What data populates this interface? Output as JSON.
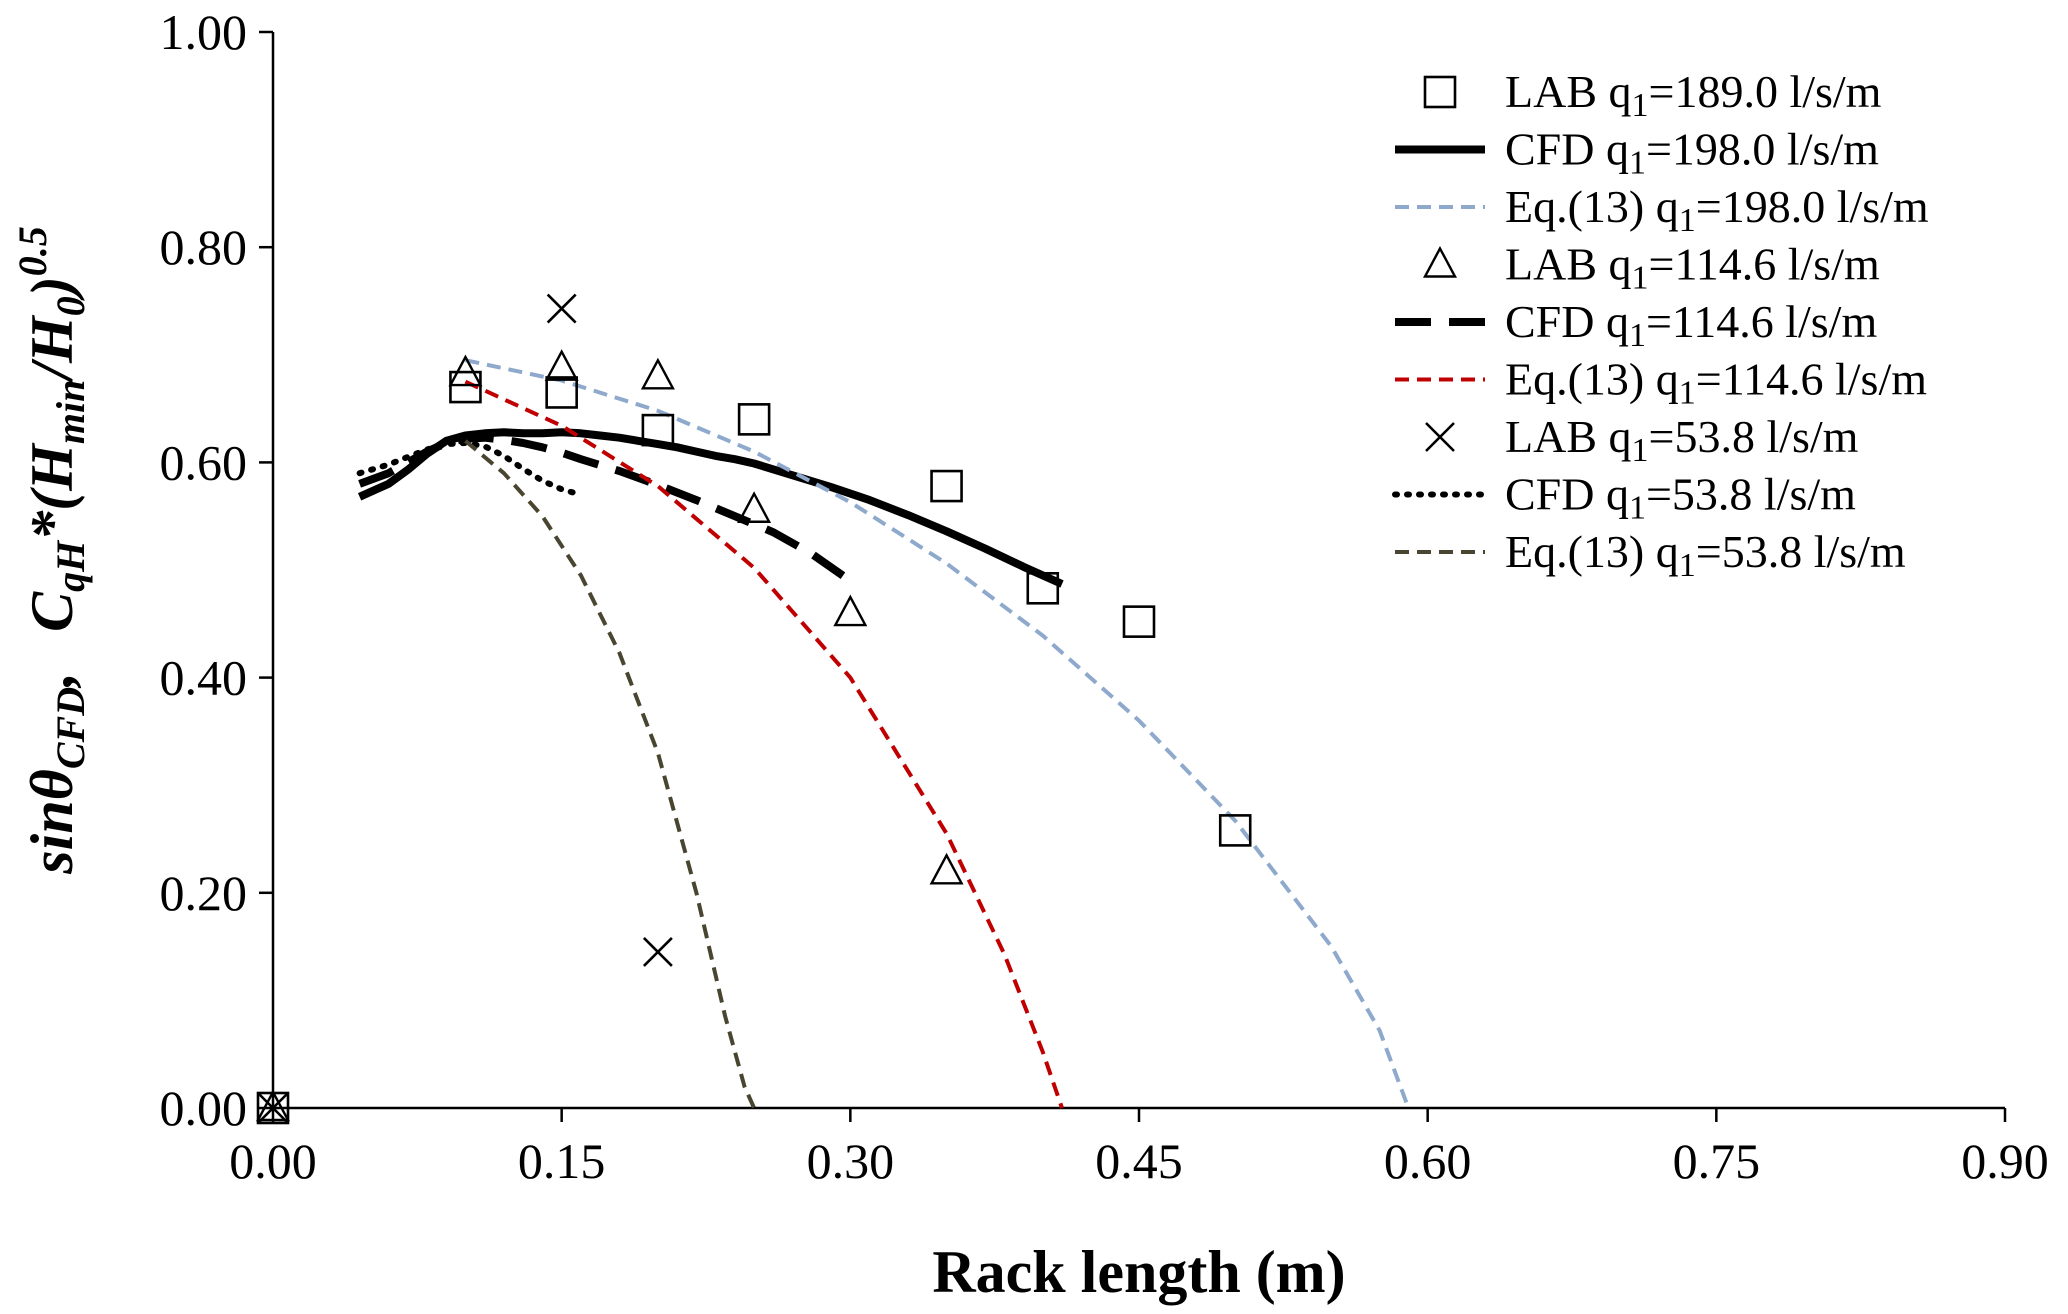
{
  "chart_data": {
    "type": "scatter",
    "title": "",
    "xlabel": "Rack length (m)",
    "ylabel_parts": {
      "sin": "sin",
      "theta": "θ",
      "cfd_sub": "CFD",
      "comma": ",",
      "c": "C",
      "qh_sub": "qH",
      "star": "*(",
      "h": "H",
      "min_sub": "min",
      "slash": "/",
      "h0": "H",
      "zero_sub": "0",
      "close": ")",
      "exp": "0.5"
    },
    "xlim": [
      0,
      0.9
    ],
    "ylim": [
      0,
      1.0
    ],
    "xticks": [
      "0.00",
      "0.15",
      "0.30",
      "0.45",
      "0.60",
      "0.75",
      "0.90"
    ],
    "yticks": [
      "0.00",
      "0.20",
      "0.40",
      "0.60",
      "0.80",
      "1.00"
    ],
    "legend_position": "top-right",
    "series": [
      {
        "name": "LAB q1=189.0 l/s/m",
        "legend": {
          "prefix": "LAB q",
          "sub": "1",
          "suffix": "=189.0 l/s/m"
        },
        "kind": "marker",
        "marker": "square",
        "color": "#000000",
        "x": [
          0.0,
          0.1,
          0.15,
          0.2,
          0.25,
          0.35,
          0.4,
          0.45,
          0.5
        ],
        "y": [
          0.0,
          0.67,
          0.665,
          0.63,
          0.64,
          0.578,
          0.483,
          0.452,
          0.258
        ]
      },
      {
        "name": "CFD q1=198.0 l/s/m",
        "legend": {
          "prefix": "CFD q",
          "sub": "1",
          "suffix": "=198.0 l/s/m"
        },
        "kind": "line",
        "style": "solid-thick",
        "color": "#000000",
        "x": [
          0.045,
          0.06,
          0.07,
          0.08,
          0.09,
          0.1,
          0.11,
          0.12,
          0.13,
          0.14,
          0.15,
          0.16,
          0.17,
          0.18,
          0.19,
          0.2,
          0.21,
          0.22,
          0.23,
          0.24,
          0.25,
          0.27,
          0.29,
          0.31,
          0.33,
          0.35,
          0.37,
          0.39,
          0.41
        ],
        "y": [
          0.568,
          0.58,
          0.593,
          0.608,
          0.62,
          0.625,
          0.627,
          0.628,
          0.627,
          0.627,
          0.628,
          0.627,
          0.625,
          0.623,
          0.62,
          0.617,
          0.614,
          0.61,
          0.606,
          0.603,
          0.599,
          0.588,
          0.577,
          0.565,
          0.551,
          0.536,
          0.52,
          0.503,
          0.487
        ]
      },
      {
        "name": "Eq.(13) q1=198.0 l/s/m",
        "legend": {
          "prefix": "Eq.(13) q",
          "sub": "1",
          "suffix": "=198.0 l/s/m"
        },
        "kind": "line",
        "style": "dashed",
        "color": "#8EA9CC",
        "x": [
          0.1,
          0.15,
          0.2,
          0.25,
          0.3,
          0.35,
          0.4,
          0.45,
          0.5,
          0.55,
          0.575,
          0.59
        ],
        "y": [
          0.695,
          0.676,
          0.648,
          0.61,
          0.563,
          0.506,
          0.439,
          0.36,
          0.267,
          0.15,
          0.072,
          0.0
        ]
      },
      {
        "name": "LAB q1=114.6 l/s/m",
        "legend": {
          "prefix": "LAB q",
          "sub": "1",
          "suffix": "=114.6 l/s/m"
        },
        "kind": "marker",
        "marker": "triangle",
        "color": "#000000",
        "x": [
          0.0,
          0.1,
          0.15,
          0.2,
          0.25,
          0.3,
          0.35
        ],
        "y": [
          0.0,
          0.683,
          0.688,
          0.68,
          0.556,
          0.46,
          0.22
        ]
      },
      {
        "name": "CFD q1=114.6 l/s/m",
        "legend": {
          "prefix": "CFD q",
          "sub": "1",
          "suffix": "=114.6 l/s/m"
        },
        "kind": "line",
        "style": "dashed-thick",
        "color": "#000000",
        "x": [
          0.045,
          0.06,
          0.07,
          0.08,
          0.09,
          0.1,
          0.11,
          0.12,
          0.13,
          0.14,
          0.15,
          0.16,
          0.18,
          0.2,
          0.22,
          0.24,
          0.26,
          0.28,
          0.3
        ],
        "y": [
          0.58,
          0.59,
          0.6,
          0.61,
          0.618,
          0.622,
          0.623,
          0.621,
          0.618,
          0.614,
          0.609,
          0.603,
          0.592,
          0.579,
          0.565,
          0.55,
          0.535,
          0.515,
          0.49
        ]
      },
      {
        "name": "Eq.(13) q1=114.6 l/s/m",
        "legend": {
          "prefix": "Eq.(13) q",
          "sub": "1",
          "suffix": "=114.6 l/s/m"
        },
        "kind": "line",
        "style": "dashed",
        "color": "#C00000",
        "x": [
          0.1,
          0.15,
          0.2,
          0.25,
          0.3,
          0.35,
          0.38,
          0.4,
          0.41
        ],
        "y": [
          0.675,
          0.634,
          0.578,
          0.502,
          0.4,
          0.255,
          0.143,
          0.052,
          0.0
        ]
      },
      {
        "name": "LAB q1=53.8 l/s/m",
        "legend": {
          "prefix": "LAB q",
          "sub": "1",
          "suffix": "=53.8 l/s/m"
        },
        "kind": "marker",
        "marker": "cross",
        "color": "#000000",
        "x": [
          0.0,
          0.15,
          0.2
        ],
        "y": [
          0.0,
          0.743,
          0.145
        ]
      },
      {
        "name": "CFD q1=53.8 l/s/m",
        "legend": {
          "prefix": "CFD q",
          "sub": "1",
          "suffix": "=53.8 l/s/m"
        },
        "kind": "line",
        "style": "dotted",
        "color": "#000000",
        "x": [
          0.045,
          0.06,
          0.07,
          0.08,
          0.09,
          0.1,
          0.11,
          0.12,
          0.13,
          0.14,
          0.15,
          0.16
        ],
        "y": [
          0.59,
          0.598,
          0.605,
          0.612,
          0.617,
          0.618,
          0.615,
          0.606,
          0.594,
          0.583,
          0.575,
          0.57
        ]
      },
      {
        "name": "Eq.(13) q1=53.8 l/s/m",
        "legend": {
          "prefix": "Eq.(13) q",
          "sub": "1",
          "suffix": "=53.8 l/s/m"
        },
        "kind": "line",
        "style": "dashed",
        "color": "#4A4530",
        "x": [
          0.1,
          0.12,
          0.14,
          0.16,
          0.18,
          0.2,
          0.22,
          0.235,
          0.245,
          0.25
        ],
        "y": [
          0.62,
          0.59,
          0.55,
          0.495,
          0.423,
          0.33,
          0.2,
          0.085,
          0.02,
          0.0
        ]
      }
    ]
  }
}
